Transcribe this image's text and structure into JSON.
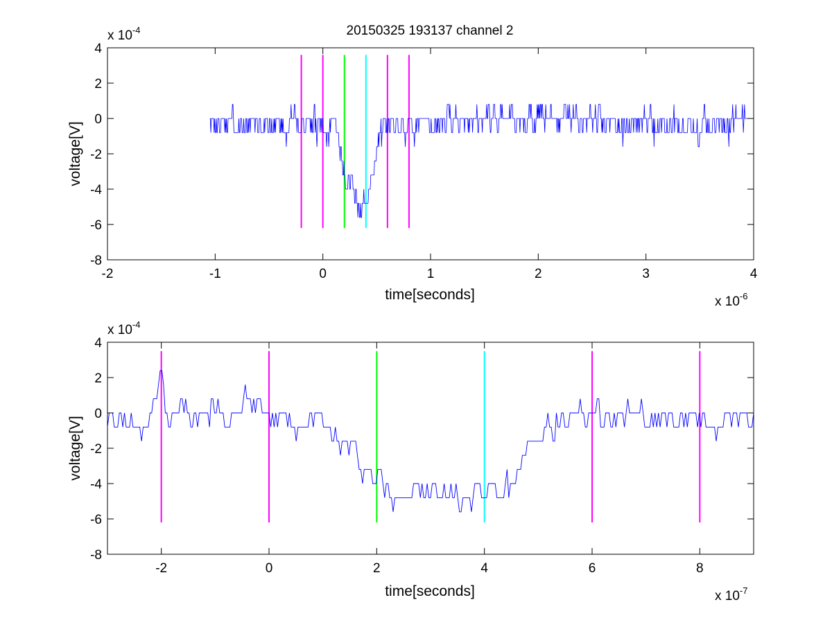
{
  "figure": {
    "title": "20150325 193137 channel 2"
  },
  "chart_data": [
    {
      "type": "line",
      "title": "20150325 193137 channel 2",
      "xlabel": "time[seconds]",
      "ylabel": "voltage[V]",
      "x_multiplier_label": "x 10",
      "x_multiplier_exp": "-6",
      "y_multiplier_label": "x 10",
      "y_multiplier_exp": "-4",
      "xlim": [
        -2,
        4
      ],
      "ylim": [
        -8,
        4
      ],
      "x_ticks": [
        -2,
        -1,
        0,
        1,
        2,
        3,
        4
      ],
      "y_ticks": [
        -8,
        -6,
        -4,
        -2,
        0,
        2,
        4
      ],
      "x_tick_labels": [
        "-2",
        "-1",
        "0",
        "1",
        "2",
        "3",
        "4"
      ],
      "y_tick_labels": [
        "-8",
        "-6",
        "-4",
        "-2",
        "0",
        "2",
        "4"
      ],
      "grid": false,
      "trace": {
        "color": "#0000ff",
        "x_start": -1.05,
        "x_end": 3.95,
        "quantum": 0.8,
        "points": [
          [
            -1.05,
            -0.4
          ],
          [
            -0.5,
            -0.3
          ],
          [
            -0.2,
            -0.3
          ],
          [
            0.1,
            -0.2
          ],
          [
            0.15,
            -1.0
          ],
          [
            0.2,
            -3.2
          ],
          [
            0.25,
            -4.2
          ],
          [
            0.3,
            -4.6
          ],
          [
            0.35,
            -4.8
          ],
          [
            0.4,
            -4.8
          ],
          [
            0.43,
            -4.0
          ],
          [
            0.47,
            -2.2
          ],
          [
            0.52,
            -0.8
          ],
          [
            0.6,
            -0.3
          ],
          [
            1.0,
            -0.3
          ],
          [
            1.5,
            0.1
          ],
          [
            2.5,
            0.0
          ],
          [
            3.0,
            -0.3
          ],
          [
            3.5,
            -0.5
          ],
          [
            3.95,
            -0.2
          ]
        ]
      },
      "markers": [
        {
          "x": -0.2,
          "color": "#ff00ff"
        },
        {
          "x": 0.0,
          "color": "#ff00ff"
        },
        {
          "x": 0.2,
          "color": "#00ff00"
        },
        {
          "x": 0.4,
          "color": "#00ffff"
        },
        {
          "x": 0.6,
          "color": "#ff00ff"
        },
        {
          "x": 0.8,
          "color": "#ff00ff"
        }
      ],
      "marker_y_range": [
        -6.2,
        3.6
      ]
    },
    {
      "type": "line",
      "xlabel": "time[seconds]",
      "ylabel": "voltage[V]",
      "x_multiplier_label": "x 10",
      "x_multiplier_exp": "-7",
      "y_multiplier_label": "x 10",
      "y_multiplier_exp": "-4",
      "xlim": [
        -3,
        9
      ],
      "ylim": [
        -8,
        4
      ],
      "x_ticks": [
        -2,
        0,
        2,
        4,
        6,
        8
      ],
      "y_ticks": [
        -8,
        -6,
        -4,
        -2,
        0,
        2,
        4
      ],
      "x_tick_labels": [
        "-2",
        "0",
        "2",
        "4",
        "6",
        "8"
      ],
      "y_tick_labels": [
        "-8",
        "-6",
        "-4",
        "-2",
        "0",
        "2",
        "4"
      ],
      "grid": false,
      "trace": {
        "color": "#0000ff",
        "x_start": -3.0,
        "x_end": 9.0,
        "quantum": 0.8,
        "points": [
          [
            -3.0,
            -0.3
          ],
          [
            -2.2,
            -0.4
          ],
          [
            -2.0,
            2.2
          ],
          [
            -1.9,
            -0.2
          ],
          [
            -1.0,
            0.0
          ],
          [
            -0.5,
            0.6
          ],
          [
            -0.1,
            0.5
          ],
          [
            0.05,
            -0.3
          ],
          [
            0.5,
            -0.5
          ],
          [
            1.0,
            -0.5
          ],
          [
            1.3,
            -1.2
          ],
          [
            1.6,
            -2.0
          ],
          [
            1.8,
            -3.2
          ],
          [
            2.0,
            -4.4
          ],
          [
            2.5,
            -4.5
          ],
          [
            3.0,
            -4.7
          ],
          [
            3.5,
            -4.8
          ],
          [
            4.0,
            -4.6
          ],
          [
            4.5,
            -4.4
          ],
          [
            4.6,
            -3.2
          ],
          [
            4.8,
            -1.8
          ],
          [
            5.0,
            -1.2
          ],
          [
            5.5,
            -0.5
          ],
          [
            6.0,
            -0.3
          ],
          [
            7.0,
            -0.2
          ],
          [
            8.0,
            -0.5
          ],
          [
            9.0,
            -0.3
          ]
        ]
      },
      "markers": [
        {
          "x": -2.0,
          "color": "#ff00ff"
        },
        {
          "x": 0.0,
          "color": "#ff00ff"
        },
        {
          "x": 2.0,
          "color": "#00ff00"
        },
        {
          "x": 4.0,
          "color": "#00ffff"
        },
        {
          "x": 6.0,
          "color": "#ff00ff"
        },
        {
          "x": 8.0,
          "color": "#ff00ff"
        }
      ],
      "marker_y_range": [
        -6.2,
        3.5
      ]
    }
  ]
}
